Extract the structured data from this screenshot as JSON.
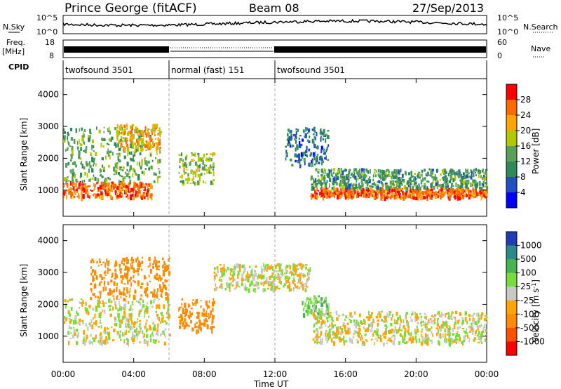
{
  "header": {
    "station": "Prince George (fitACF)",
    "beam": "Beam 08",
    "date": "27/Sep/2013"
  },
  "left_labels": {
    "nsky": "N.Sky",
    "freq": "Freq.",
    "freq_unit": "[MHz]",
    "cpid": "CPID"
  },
  "right_labels": {
    "nsearch": "N.Search",
    "nave": "Nave"
  },
  "top_axes": {
    "noise_ticks": [
      "10^5",
      "10^0"
    ],
    "freq_ticks": [
      "18",
      "8"
    ],
    "nave_ticks": [
      "60",
      "0"
    ]
  },
  "cpid_segments": [
    {
      "label": "twofsound 3501",
      "start_h": 0,
      "end_h": 6
    },
    {
      "label": "normal (fast) 151",
      "start_h": 6,
      "end_h": 12
    },
    {
      "label": "twofsound 3501",
      "start_h": 12,
      "end_h": 24
    }
  ],
  "x_axis": {
    "title": "Time UT",
    "ticks": [
      "00:00",
      "04:00",
      "08:00",
      "12:00",
      "16:00",
      "20:00",
      "00:00"
    ],
    "range_h": [
      0,
      24
    ]
  },
  "y_axis": {
    "title": "Slant Range [km]",
    "ticks": [
      "1000",
      "2000",
      "3000",
      "4000"
    ],
    "range_km": [
      180,
      4500
    ]
  },
  "power_colorbar": {
    "title": "Power [dB]",
    "ticks": [
      "4",
      "8",
      "12",
      "16",
      "20",
      "24",
      "28"
    ],
    "colors": [
      "#0000ff",
      "#2050c0",
      "#2e8b57",
      "#5aa05a",
      "#b4c800",
      "#ffa500",
      "#ff6a00",
      "#ff0000"
    ]
  },
  "velocity_colorbar": {
    "title": "Velocity [m s^-1]",
    "ticks": [
      "1000",
      "500",
      "100",
      "25",
      "-25",
      "-100",
      "-500",
      "-1000"
    ],
    "colors": [
      "#1e3cb4",
      "#2a8a8a",
      "#46b450",
      "#78dc3c",
      "#c8c8c8",
      "#ffa500",
      "#ff8c00",
      "#ff5000",
      "#ff0000"
    ]
  },
  "chart_data": [
    {
      "type": "heatmap",
      "title": "Power",
      "xlabel": "Time UT",
      "ylabel": "Slant Range [km]",
      "xlim": [
        0,
        24
      ],
      "ylim": [
        180,
        4500
      ],
      "colorbar_label": "Power [dB]",
      "colorbar_range": [
        0,
        32
      ],
      "regions": [
        {
          "t": [
            0.0,
            5.0
          ],
          "range_km": [
            800,
            1300
          ],
          "power_db": 26
        },
        {
          "t": [
            0.0,
            5.5
          ],
          "range_km": [
            1300,
            3000
          ],
          "power_db": 14
        },
        {
          "t": [
            3.0,
            5.5
          ],
          "range_km": [
            2300,
            3100
          ],
          "power_db": 22
        },
        {
          "t": [
            6.5,
            8.5
          ],
          "range_km": [
            1200,
            2200
          ],
          "power_db": 16
        },
        {
          "t": [
            12.5,
            15.0
          ],
          "range_km": [
            1800,
            3000
          ],
          "power_db": 8
        },
        {
          "t": [
            14.0,
            24.0
          ],
          "range_km": [
            800,
            1100
          ],
          "power_db": 26
        },
        {
          "t": [
            14.0,
            24.0
          ],
          "range_km": [
            1100,
            1700
          ],
          "power_db": 12
        }
      ]
    },
    {
      "type": "heatmap",
      "title": "Velocity",
      "xlabel": "Time UT",
      "ylabel": "Slant Range [km]",
      "xlim": [
        0,
        24
      ],
      "ylim": [
        180,
        4500
      ],
      "colorbar_label": "Velocity [m s^-1]",
      "colorbar_range": [
        -1000,
        1000
      ],
      "regions": [
        {
          "t": [
            0.0,
            6.0
          ],
          "range_km": [
            800,
            2200
          ],
          "velocity": 0
        },
        {
          "t": [
            1.5,
            6.0
          ],
          "range_km": [
            2200,
            3500
          ],
          "velocity": -300
        },
        {
          "t": [
            6.5,
            8.5
          ],
          "range_km": [
            1200,
            2200
          ],
          "velocity": -400
        },
        {
          "t": [
            8.5,
            14.0
          ],
          "range_km": [
            2500,
            3300
          ],
          "velocity": 0
        },
        {
          "t": [
            13.5,
            15.0
          ],
          "range_km": [
            1600,
            2300
          ],
          "velocity": 80
        },
        {
          "t": [
            14.0,
            24.0
          ],
          "range_km": [
            800,
            1800
          ],
          "velocity": 0
        }
      ]
    }
  ]
}
